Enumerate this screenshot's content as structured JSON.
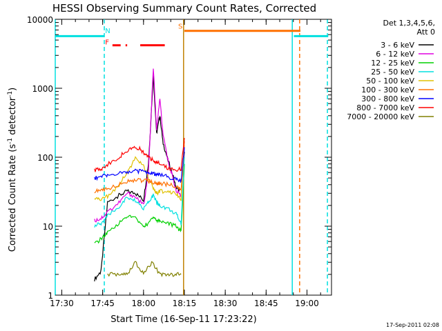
{
  "chart_data": {
    "type": "line",
    "title": "HESSI Observing Summary Count Rates, Corrected",
    "xlabel": "Start Time (16-Sep-11 17:23:22)",
    "ylabel": "Corrected Count Rate (s",
    "ylabel_sup1": "-1",
    "ylabel_mid": " detector",
    "ylabel_sup2": "-1",
    "ylabel_end": ")",
    "footer": "17-Sep-2011 02:08",
    "xlim": [
      17.46,
      19.15
    ],
    "ylim": [
      1,
      10000
    ],
    "yscale": "log",
    "xticks": [
      {
        "v": 17.5,
        "label": "17:30"
      },
      {
        "v": 17.75,
        "label": "17:45"
      },
      {
        "v": 18.0,
        "label": "18:00"
      },
      {
        "v": 18.25,
        "label": "18:15"
      },
      {
        "v": 18.5,
        "label": "18:30"
      },
      {
        "v": 18.75,
        "label": "18:45"
      },
      {
        "v": 19.0,
        "label": "19:00"
      }
    ],
    "yticks": [
      {
        "v": 1,
        "label": "1"
      },
      {
        "v": 10,
        "label": "10"
      },
      {
        "v": 100,
        "label": "100"
      },
      {
        "v": 1000,
        "label": "1000"
      },
      {
        "v": 10000,
        "label": "10000"
      }
    ],
    "legend": {
      "placement": "right",
      "header1": "Det 1,3,4,5,6,",
      "header2": "Att 0",
      "entries": [
        "3 - 6 keV",
        "6 - 12 keV",
        "12 - 25 keV",
        "25 - 50 keV",
        "50 - 100 keV",
        "100 - 300 keV",
        "300 - 800 keV",
        "800 - 7000 keV",
        "7000 - 20000 keV"
      ]
    },
    "series": [
      {
        "name": "3 - 6 keV",
        "color": "#000000",
        "x": [
          17.7,
          17.74,
          17.78,
          17.85,
          17.9,
          17.95,
          18.0,
          18.03,
          18.06,
          18.08,
          18.1,
          18.12,
          18.15,
          18.18,
          18.2,
          18.23,
          18.25
        ],
        "y": [
          1.7,
          2.2,
          22,
          28,
          32,
          30,
          24,
          80,
          1500,
          220,
          400,
          160,
          90,
          55,
          35,
          32,
          120
        ]
      },
      {
        "name": "6 - 12 keV",
        "color": "#e000e0",
        "x": [
          17.7,
          17.74,
          17.78,
          17.85,
          17.9,
          17.95,
          18.0,
          18.03,
          18.06,
          18.08,
          18.1,
          18.12,
          18.15,
          18.18,
          18.2,
          18.23,
          18.25
        ],
        "y": [
          12,
          13,
          16,
          22,
          30,
          27,
          20,
          60,
          2000,
          250,
          700,
          200,
          90,
          50,
          32,
          28,
          140
        ]
      },
      {
        "name": "12 - 25 keV",
        "color": "#00d000",
        "x": [
          17.7,
          17.74,
          17.78,
          17.85,
          17.9,
          17.95,
          18.0,
          18.03,
          18.06,
          18.08,
          18.1,
          18.15,
          18.2,
          18.23,
          18.25
        ],
        "y": [
          5.5,
          6.5,
          8,
          11,
          14,
          13,
          10,
          11,
          14,
          12,
          12,
          11,
          10,
          8.5,
          80
        ]
      },
      {
        "name": "25 - 50 keV",
        "color": "#00e0e0",
        "x": [
          17.7,
          17.74,
          17.78,
          17.85,
          17.9,
          17.95,
          18.0,
          18.03,
          18.06,
          18.08,
          18.1,
          18.15,
          18.2,
          18.23,
          18.25
        ],
        "y": [
          10,
          11,
          14,
          19,
          26,
          23,
          18,
          22,
          28,
          22,
          20,
          18,
          15,
          11,
          100
        ]
      },
      {
        "name": "50 - 100 keV",
        "color": "#e0c000",
        "x": [
          17.7,
          17.74,
          17.78,
          17.85,
          17.9,
          17.95,
          18.0,
          18.03,
          18.06,
          18.08,
          18.1,
          18.15,
          18.2,
          18.23,
          18.25
        ],
        "y": [
          24,
          25,
          27,
          40,
          62,
          95,
          75,
          48,
          36,
          30,
          32,
          32,
          30,
          25,
          150
        ]
      },
      {
        "name": "100 - 300 keV",
        "color": "#ff7000",
        "x": [
          17.7,
          17.74,
          17.78,
          17.85,
          17.9,
          17.95,
          18.0,
          18.03,
          18.06,
          18.08,
          18.1,
          18.15,
          18.2,
          18.23,
          18.25
        ],
        "y": [
          32,
          33,
          35,
          40,
          45,
          47,
          46,
          45,
          43,
          42,
          42,
          40,
          38,
          33,
          170
        ]
      },
      {
        "name": "300 - 800 keV",
        "color": "#0000ff",
        "x": [
          17.7,
          17.74,
          17.78,
          17.85,
          17.9,
          17.95,
          18.0,
          18.03,
          18.06,
          18.08,
          18.1,
          18.15,
          18.2,
          18.23,
          18.25
        ],
        "y": [
          50,
          52,
          55,
          58,
          62,
          63,
          62,
          60,
          58,
          56,
          55,
          52,
          48,
          45,
          140
        ]
      },
      {
        "name": "800 - 7000 keV",
        "color": "#ff0000",
        "x": [
          17.7,
          17.74,
          17.78,
          17.85,
          17.9,
          17.95,
          17.98,
          18.0,
          18.03,
          18.06,
          18.08,
          18.1,
          18.15,
          18.2,
          18.23,
          18.25
        ],
        "y": [
          65,
          68,
          78,
          100,
          125,
          140,
          130,
          115,
          100,
          92,
          85,
          80,
          70,
          66,
          68,
          190
        ]
      },
      {
        "name": "7000 - 20000 keV",
        "color": "#808000",
        "x": [
          17.78,
          17.85,
          17.9,
          17.95,
          18.0,
          18.05,
          18.1,
          18.15,
          18.2,
          18.23
        ],
        "y": [
          2,
          2,
          2,
          3,
          2,
          3,
          2,
          2,
          2,
          2
        ]
      }
    ],
    "annotations": {
      "night_bars": [
        {
          "x0": 17.46,
          "x1": 17.76,
          "y": 5700,
          "color": "#00e0e0"
        },
        {
          "x0": 18.92,
          "x1": 19.13,
          "y": 5700,
          "color": "#00e0e0"
        }
      ],
      "night_lines": [
        {
          "x": 17.46,
          "style": "solid",
          "color": "#00e0e0"
        },
        {
          "x": 17.76,
          "style": "dashed",
          "color": "#00e0e0"
        },
        {
          "x": 18.91,
          "style": "solid",
          "color": "#00e0e0"
        },
        {
          "x": 19.125,
          "style": "dashed",
          "color": "#00e0e0"
        }
      ],
      "saa_bar": {
        "x0": 18.25,
        "x1": 18.96,
        "y": 6800,
        "color": "#ff7000"
      },
      "saa_lines": [
        {
          "x": 18.245,
          "style": "solid",
          "color": "#c08000"
        },
        {
          "x": 18.955,
          "style": "dashed",
          "color": "#ff7000"
        }
      ],
      "flare_bars": [
        {
          "x0": 17.81,
          "x1": 17.86,
          "y": 4200,
          "color": "#ff0000"
        },
        {
          "x0": 17.89,
          "x1": 17.9,
          "y": 4200,
          "color": "#ff0000"
        },
        {
          "x0": 17.98,
          "x1": 18.13,
          "y": 4200,
          "color": "#ff0000"
        }
      ],
      "labels": [
        {
          "text": "N",
          "x": 17.765,
          "y": 6300,
          "color": "#00e0e0"
        },
        {
          "text": "F",
          "x": 17.765,
          "y": 4300,
          "color": "#ff0000"
        },
        {
          "text": "S",
          "x": 18.212,
          "y": 7300,
          "color": "#ff7000"
        }
      ]
    }
  }
}
